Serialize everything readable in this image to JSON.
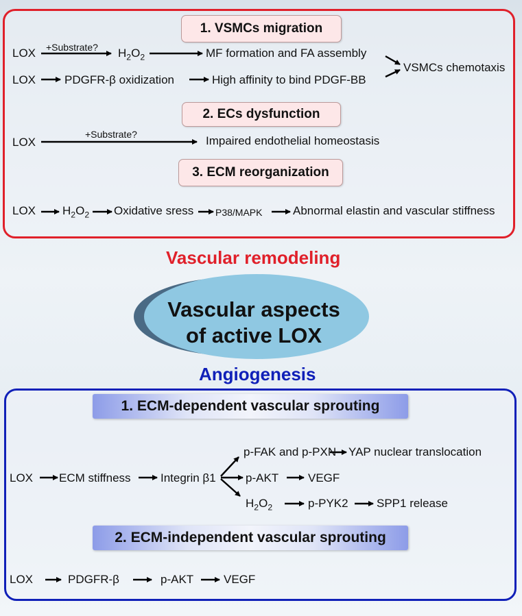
{
  "remodeling": {
    "heading": "Vascular remodeling",
    "s1_title": "1. VSMCs migration",
    "s2_title": "2. ECs dysfunction",
    "s3_title": "3. ECM reorganization",
    "lox": "LOX",
    "substrate": "+Substrate?",
    "h2o2": "H",
    "h2o2_sub": "2",
    "h2o2_end": "O",
    "mf": "MF formation and FA assembly",
    "pdgfr_ox": "PDGFR-β oxidization",
    "high_aff": "High affinity to bind PDGF-BB",
    "chemotaxis": "VSMCs chemotaxis",
    "impaired": "Impaired endothelial homeostasis",
    "oxidative": "Oxidative sress",
    "p38": "P38/MAPK",
    "abnormal": "Abnormal elastin and vascular stiffness"
  },
  "center": {
    "line1": "Vascular aspects",
    "line2": "of  active LOX"
  },
  "angiogenesis": {
    "heading": "Angiogenesis",
    "s1_title": "1. ECM-dependent vascular sprouting",
    "s2_title": "2. ECM-independent vascular sprouting",
    "lox": "LOX",
    "ecm_stiff": "ECM stiffness",
    "integrin": "Integrin β1",
    "pfak": "p-FAK and p-PXN",
    "yap": "YAP nuclear  translocation",
    "pakt": "p-AKT",
    "vegf": "VEGF",
    "pyk2": "p-PYK2",
    "spp1": "SPP1 release",
    "pdgfr": "PDGFR-β"
  },
  "colors": {
    "remodeling": "#e0202a",
    "angiogenesis": "#1020b8",
    "ellipse": "#8fc8e2",
    "ellipse_shadow": "#4a6a84"
  }
}
